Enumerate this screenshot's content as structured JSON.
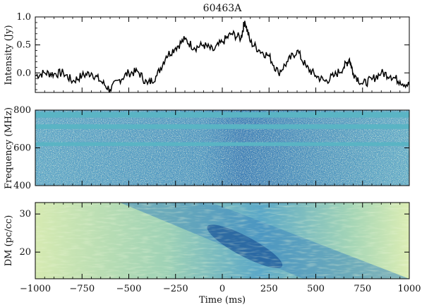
{
  "chart_data": {
    "type": "composite",
    "title": "60463A",
    "xlabel": "Time (ms)",
    "xlim": [
      -1000,
      1000
    ],
    "x_ticks": [
      -1000,
      -750,
      -500,
      -250,
      0,
      250,
      500,
      750,
      1000
    ],
    "x_tick_labels": [
      "−1000",
      "−750",
      "−500",
      "−250",
      "0",
      "250",
      "500",
      "750",
      "1000"
    ],
    "panels": [
      {
        "type": "line",
        "name": "intensity",
        "ylabel": "Intensity (Jy)",
        "ylim": [
          -0.35,
          1.0
        ],
        "y_ticks": [
          0.0,
          0.5,
          1.0
        ],
        "y_tick_labels": [
          "0.0",
          "0.5",
          "1.0"
        ],
        "line_color": "#000000",
        "x": [
          -1000,
          -950,
          -900,
          -850,
          -800,
          -750,
          -700,
          -650,
          -600,
          -550,
          -500,
          -450,
          -400,
          -350,
          -300,
          -250,
          -200,
          -150,
          -100,
          -50,
          0,
          50,
          100,
          120,
          150,
          200,
          250,
          300,
          350,
          400,
          450,
          500,
          550,
          600,
          650,
          680,
          700,
          750,
          800,
          850,
          900,
          950,
          1000
        ],
        "y": [
          -0.05,
          0.0,
          -0.02,
          0.0,
          -0.15,
          -0.05,
          0.0,
          -0.15,
          -0.3,
          -0.12,
          0.0,
          0.02,
          -0.2,
          -0.05,
          0.3,
          0.45,
          0.6,
          0.45,
          0.5,
          0.4,
          0.55,
          0.7,
          0.62,
          0.93,
          0.55,
          0.4,
          0.3,
          0.0,
          0.2,
          0.4,
          0.1,
          -0.05,
          -0.15,
          -0.05,
          0.1,
          0.25,
          0.0,
          -0.2,
          -0.12,
          0.0,
          -0.05,
          -0.15,
          -0.22
        ]
      },
      {
        "type": "heatmap",
        "name": "dynamic-spectrum",
        "ylabel": "Frequency (MHz)",
        "ylim": [
          400,
          800
        ],
        "y_ticks": [
          400,
          600,
          800
        ],
        "y_tick_labels": [
          "400",
          "600",
          "800"
        ],
        "colormap": "YlGnBu",
        "masked_bands": [
          [
            760,
            790
          ],
          [
            700,
            725
          ],
          [
            610,
            630
          ]
        ],
        "mask_color": "#5ab4c4"
      },
      {
        "type": "heatmap",
        "name": "dm-time",
        "ylabel": "DM (pc/cc)",
        "ylim": [
          13,
          33
        ],
        "y_ticks": [
          20,
          30
        ],
        "y_tick_labels": [
          "20",
          "30"
        ],
        "colormap": "YlGnBu",
        "sweep_center": {
          "t_ms": 120,
          "dm": 21.5
        }
      }
    ]
  }
}
